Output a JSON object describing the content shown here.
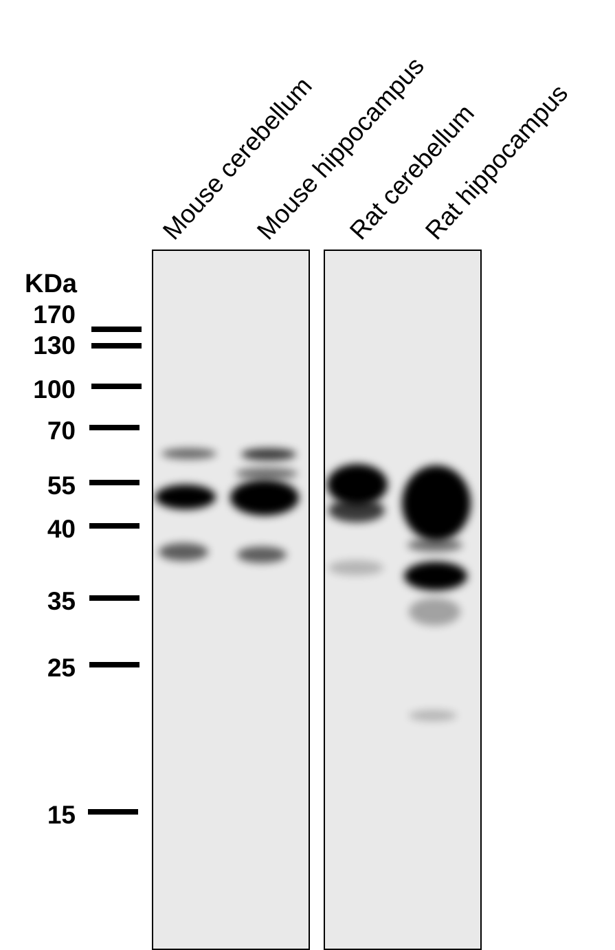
{
  "lanes": [
    "Mouse cerebellum",
    "Mouse hippocampus",
    "Rat cerebellum",
    "Rat hippocampus"
  ],
  "unit_label": "KDa",
  "markers": [
    "170",
    "130",
    "100",
    "70",
    "55",
    "40",
    "35",
    "25",
    "15"
  ],
  "colors": {
    "membrane": "#e9e9e9",
    "band": "#000000"
  }
}
